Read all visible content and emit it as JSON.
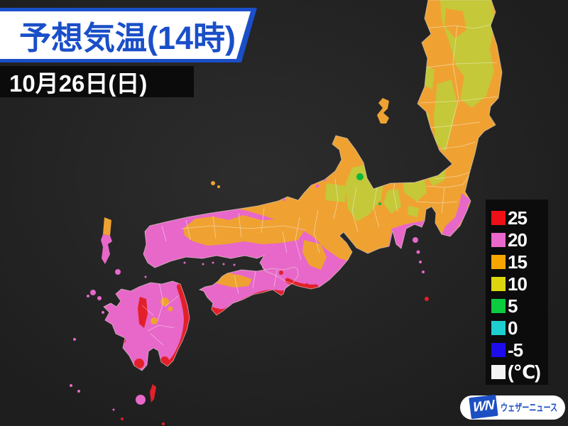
{
  "header": {
    "title": "予想気温(14時)",
    "date": "10月26日(日)"
  },
  "legend": {
    "items": [
      {
        "value": "25",
        "color": "#ee0f17"
      },
      {
        "value": "20",
        "color": "#ea68cc"
      },
      {
        "value": "15",
        "color": "#f7a600"
      },
      {
        "value": "10",
        "color": "#ddd60e"
      },
      {
        "value": "5",
        "color": "#0bcb3f"
      },
      {
        "value": "0",
        "color": "#1ecfcf"
      },
      {
        "value": "-5",
        "color": "#1d0cec"
      },
      {
        "value": "(℃)",
        "color": "#f4f4f4"
      }
    ]
  },
  "logo": {
    "monogram": "WN",
    "name": "ウェザーニュース"
  },
  "map": {
    "palette": {
      "band_25": "#e22029",
      "band_20": "#e768c9",
      "band_15": "#efa232",
      "band_10": "#c5c838",
      "band_5": "#0cb83c"
    }
  },
  "colors": {
    "background_1": "#2d2d2d",
    "background_2": "#1e1e1e",
    "banner_bg": "#ffffff",
    "banner_text": "#1a4fc8",
    "banner_border": "#1a4fc8",
    "date_bg": "#0b0b0b",
    "date_text": "#ffffff",
    "legend_bg": "#0c0c0c",
    "legend_text": "#ffffff",
    "logo_bg": "#ffffff",
    "logo_blue": "#1d4fc4",
    "sea": "#262626",
    "coast": "#e7ded6",
    "map_orange": "#efa232",
    "map_magenta": "#e768c9",
    "map_ygreen": "#c5c838",
    "map_red": "#e22029",
    "map_green": "#0cb83c"
  }
}
